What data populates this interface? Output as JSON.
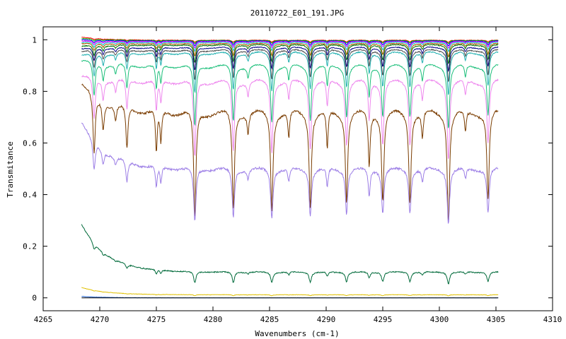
{
  "chart_data": {
    "type": "line",
    "title": "20110722_E01_191.JPG",
    "xlabel": "Wavenumbers (cm-1)",
    "ylabel": "Transmitance",
    "xlim": [
      4265,
      4310
    ],
    "ylim": [
      -0.05,
      1.05
    ],
    "x_ticks": [
      "4265",
      "4270",
      "4275",
      "4280",
      "4285",
      "4290",
      "4295",
      "4300",
      "4305",
      "4310"
    ],
    "y_ticks": [
      "0",
      "0.2",
      "0.4",
      "0.6",
      "0.8",
      "1"
    ],
    "grid": false,
    "legend": "none",
    "x_range": [
      4268.4,
      4305.2
    ],
    "absorption_lines": [
      {
        "x": 4269.5,
        "rel_depth": 0.55,
        "width": 0.18
      },
      {
        "x": 4270.3,
        "rel_depth": 0.25,
        "width": 0.15
      },
      {
        "x": 4271.4,
        "rel_depth": 0.15,
        "width": 0.15
      },
      {
        "x": 4272.4,
        "rel_depth": 0.4,
        "width": 0.16
      },
      {
        "x": 4275.0,
        "rel_depth": 0.4,
        "width": 0.14
      },
      {
        "x": 4275.4,
        "rel_depth": 0.3,
        "width": 0.14
      },
      {
        "x": 4278.4,
        "rel_depth": 1.0,
        "width": 0.18
      },
      {
        "x": 4281.8,
        "rel_depth": 0.9,
        "width": 0.18
      },
      {
        "x": 4283.1,
        "rel_depth": 0.18,
        "width": 0.14
      },
      {
        "x": 4285.2,
        "rel_depth": 0.9,
        "width": 0.18
      },
      {
        "x": 4286.7,
        "rel_depth": 0.25,
        "width": 0.14
      },
      {
        "x": 4288.6,
        "rel_depth": 0.85,
        "width": 0.18
      },
      {
        "x": 4290.1,
        "rel_depth": 0.35,
        "width": 0.14
      },
      {
        "x": 4291.8,
        "rel_depth": 0.8,
        "width": 0.18
      },
      {
        "x": 4293.8,
        "rel_depth": 0.5,
        "width": 0.15
      },
      {
        "x": 4295.0,
        "rel_depth": 0.8,
        "width": 0.18
      },
      {
        "x": 4297.4,
        "rel_depth": 0.8,
        "width": 0.18
      },
      {
        "x": 4298.5,
        "rel_depth": 0.25,
        "width": 0.14
      },
      {
        "x": 4300.8,
        "rel_depth": 1.0,
        "width": 0.18
      },
      {
        "x": 4302.3,
        "rel_depth": 0.2,
        "width": 0.14
      },
      {
        "x": 4304.3,
        "rel_depth": 0.8,
        "width": 0.18
      }
    ],
    "series": [
      {
        "color": "#ff0000",
        "baseline": 0.998,
        "start": 1.01,
        "depth": 0.008,
        "noise": 0.001
      },
      {
        "color": "#00aa00",
        "baseline": 0.997,
        "start": 1.005,
        "depth": 0.012,
        "noise": 0.001
      },
      {
        "color": "#0000ff",
        "baseline": 0.995,
        "start": 1.0,
        "depth": 0.018,
        "noise": 0.001
      },
      {
        "color": "#ff00ff",
        "baseline": 0.993,
        "start": 0.995,
        "depth": 0.025,
        "noise": 0.001
      },
      {
        "color": "#00cccc",
        "baseline": 0.99,
        "start": 0.99,
        "depth": 0.035,
        "noise": 0.001
      },
      {
        "color": "#aa5500",
        "baseline": 0.985,
        "start": 0.985,
        "depth": 0.05,
        "noise": 0.0015
      },
      {
        "color": "#007000",
        "baseline": 0.98,
        "start": 0.975,
        "depth": 0.07,
        "noise": 0.0015
      },
      {
        "color": "#000080",
        "baseline": 0.97,
        "start": 0.965,
        "depth": 0.09,
        "noise": 0.0015
      },
      {
        "color": "#505050",
        "baseline": 0.96,
        "start": 0.955,
        "depth": 0.12,
        "noise": 0.002
      },
      {
        "color": "#20b0b0",
        "baseline": 0.95,
        "start": 0.94,
        "depth": 0.16,
        "noise": 0.002
      },
      {
        "color": "#1bbf7a",
        "baseline": 0.9,
        "start": 0.92,
        "depth": 0.24,
        "noise": 0.002
      },
      {
        "color": "#ee88ee",
        "baseline": 0.84,
        "start": 0.86,
        "depth": 0.3,
        "noise": 0.003
      },
      {
        "color": "#7a3c00",
        "baseline": 0.72,
        "start": 0.83,
        "depth": 0.42,
        "noise": 0.004
      },
      {
        "color": "#9c7ee6",
        "baseline": 0.5,
        "start": 0.68,
        "depth": 0.21,
        "noise": 0.004
      },
      {
        "color": "#006a3a",
        "baseline": 0.1,
        "start": 0.285,
        "depth": 0.045,
        "noise": 0.002
      },
      {
        "color": "#e0c000",
        "baseline": 0.012,
        "start": 0.04,
        "depth": 0.004,
        "noise": 0.0008
      },
      {
        "color": "#1a5fd0",
        "baseline": 0.0,
        "start": 0.005,
        "depth": 0.0,
        "noise": 0.0005
      },
      {
        "color": "#000000",
        "baseline": 0.0,
        "start": 0.0,
        "depth": 0.0,
        "noise": 0.0
      }
    ]
  }
}
